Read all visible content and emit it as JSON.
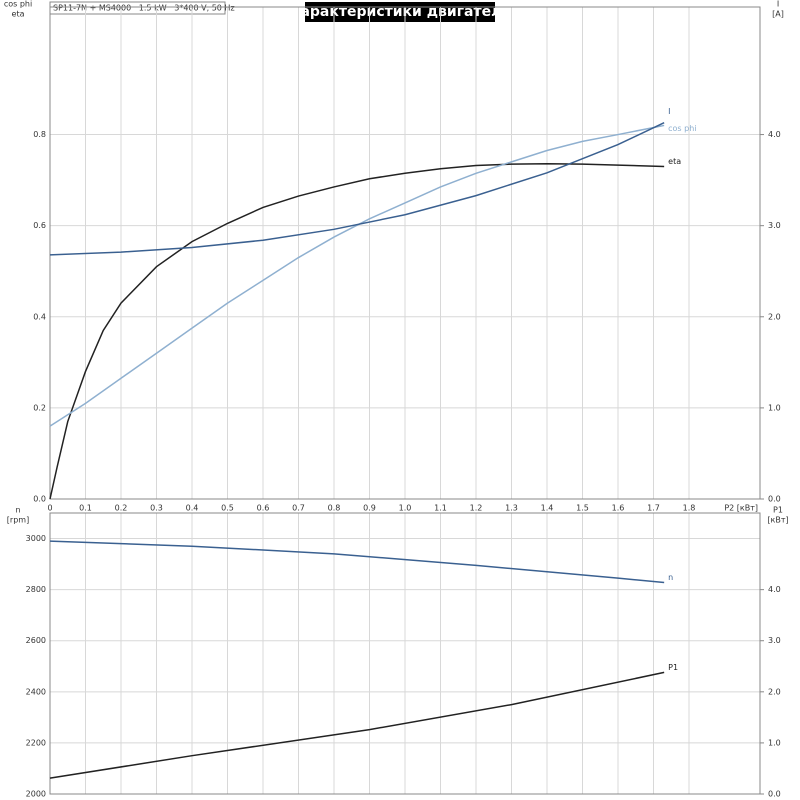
{
  "chart_data": [
    {
      "type": "line",
      "title": "Характеристики двигателя",
      "subtitle": "SP11-7N + MS4000   1.5 kW   3*400 V, 50 Hz",
      "xlabel": "P2 [кВт]",
      "ylabel": [
        "cos phi",
        "eta"
      ],
      "y2label": [
        "I",
        "[A]"
      ],
      "xlim": [
        0,
        2.0
      ],
      "xticks": [
        0,
        0.1,
        0.2,
        0.3,
        0.4,
        0.5,
        0.6,
        0.7,
        0.8,
        0.9,
        {
          "value": 1,
          "label": "1.0"
        },
        1.1,
        1.2,
        1.3,
        1.4,
        1.5,
        1.6,
        1.7,
        1.8
      ],
      "ylim": [
        0,
        1.08
      ],
      "yticks": [
        {
          "value": 0,
          "label": "0.0"
        },
        0.2,
        0.4,
        0.6,
        0.8
      ],
      "y2lim": [
        0,
        5.4
      ],
      "y2ticks": [
        {
          "value": 0,
          "label": "0.0"
        },
        {
          "value": 1,
          "label": "1.0"
        },
        {
          "value": 2,
          "label": "2.0"
        },
        {
          "value": 3,
          "label": "3.0"
        },
        {
          "value": 4,
          "label": "4.0"
        }
      ],
      "grid": true,
      "series": [
        {
          "name": "eta",
          "color": "#222222",
          "x": [
            0,
            0.02,
            0.05,
            0.1,
            0.15,
            0.2,
            0.3,
            0.4,
            0.5,
            0.6,
            0.7,
            0.8,
            0.9,
            1.0,
            1.1,
            1.2,
            1.3,
            1.4,
            1.5,
            1.6,
            1.73
          ],
          "values": [
            0,
            0.07,
            0.17,
            0.28,
            0.37,
            0.43,
            0.51,
            0.565,
            0.605,
            0.64,
            0.665,
            0.685,
            0.703,
            0.715,
            0.725,
            0.732,
            0.735,
            0.736,
            0.735,
            0.733,
            0.73
          ]
        },
        {
          "name": "cos phi",
          "color": "#8fb0d0",
          "x": [
            0,
            0.1,
            0.2,
            0.3,
            0.4,
            0.5,
            0.6,
            0.7,
            0.8,
            0.9,
            1.0,
            1.1,
            1.2,
            1.3,
            1.4,
            1.5,
            1.6,
            1.73
          ],
          "values": [
            0.16,
            0.21,
            0.265,
            0.32,
            0.375,
            0.43,
            0.48,
            0.53,
            0.575,
            0.615,
            0.65,
            0.685,
            0.715,
            0.74,
            0.765,
            0.785,
            0.8,
            0.82
          ]
        },
        {
          "name": "I",
          "color": "#3a6090",
          "axis": "y2",
          "x": [
            0,
            0.2,
            0.4,
            0.6,
            0.8,
            1.0,
            1.2,
            1.4,
            1.6,
            1.73
          ],
          "values": [
            2.68,
            2.71,
            2.76,
            2.84,
            2.96,
            3.12,
            3.33,
            3.58,
            3.89,
            4.13
          ]
        }
      ]
    },
    {
      "type": "line",
      "ylabel": [
        "n",
        "[rpm]"
      ],
      "y2label": [
        "P1",
        "[кВт]"
      ],
      "xlim": [
        0,
        2.0
      ],
      "ylim": [
        2000,
        3100
      ],
      "yticks": [
        2000,
        2200,
        2400,
        2600,
        2800,
        3000
      ],
      "y2lim": [
        0,
        5.5
      ],
      "y2ticks": [
        {
          "value": 0,
          "label": "0.0"
        },
        {
          "value": 1,
          "label": "1.0"
        },
        {
          "value": 2,
          "label": "2.0"
        },
        {
          "value": 3,
          "label": "3.0"
        },
        {
          "value": 4,
          "label": "4.0"
        }
      ],
      "grid": true,
      "series": [
        {
          "name": "n",
          "color": "#3a6090",
          "x": [
            0,
            0.4,
            0.8,
            1.2,
            1.6,
            1.73
          ],
          "values": [
            2990,
            2970,
            2940,
            2895,
            2845,
            2828
          ]
        },
        {
          "name": "P1",
          "color": "#222222",
          "axis": "y2",
          "x": [
            0,
            0.4,
            0.9,
            1.3,
            1.73
          ],
          "values": [
            0.31,
            0.75,
            1.26,
            1.75,
            2.38
          ]
        }
      ]
    }
  ]
}
